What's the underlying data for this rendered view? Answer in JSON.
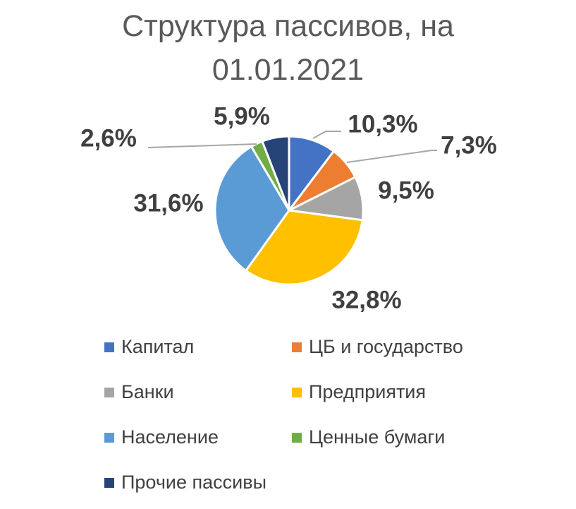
{
  "chart_data": {
    "type": "pie",
    "title_lines": [
      "Структура пассивов, на",
      "01.01.2021"
    ],
    "categories": [
      "Капитал",
      "ЦБ и государство",
      "Банки",
      "Предприятия",
      "Население",
      "Ценные бумаги",
      "Прочие пассивы"
    ],
    "values": [
      10.3,
      7.3,
      9.5,
      32.8,
      31.6,
      2.6,
      5.9
    ],
    "data_labels": [
      "10,3%",
      "7,3%",
      "9,5%",
      "32,8%",
      "31,6%",
      "2,6%",
      "5,9%"
    ],
    "colors": [
      "#4472C4",
      "#ED7D31",
      "#A5A5A5",
      "#FFC000",
      "#5B9BD5",
      "#70AD47",
      "#264478"
    ],
    "legend_position": "bottom",
    "legend_columns": 2
  }
}
